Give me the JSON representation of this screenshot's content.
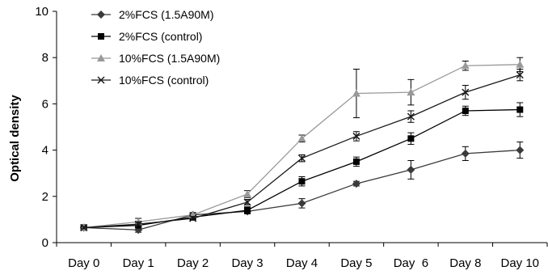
{
  "chart_data": {
    "type": "line",
    "title": "",
    "xlabel": "",
    "ylabel": "Optical density",
    "ylim": [
      0,
      10
    ],
    "yticks": [
      "0",
      "2",
      "4",
      "6",
      "8",
      "10"
    ],
    "categories": [
      "Day 0",
      "Day 1",
      "Day 2",
      "Day 3",
      "Day 4",
      "Day 5",
      "Day  6",
      "Day 8",
      "Day 10"
    ],
    "grid": false,
    "legend_position": "top-left",
    "series": [
      {
        "name": "2%FCS (1.5A90M)",
        "color": "#3a3a3a",
        "marker": "diamond",
        "values": [
          0.65,
          0.55,
          1.2,
          1.35,
          1.7,
          2.55,
          3.15,
          3.85,
          4.0
        ],
        "errors": [
          0.05,
          0.1,
          0.08,
          0.1,
          0.2,
          0.1,
          0.4,
          0.3,
          0.35
        ]
      },
      {
        "name": "2%FCS (control)",
        "color": "#000000",
        "marker": "square",
        "values": [
          0.65,
          0.75,
          1.1,
          1.4,
          2.65,
          3.5,
          4.5,
          5.7,
          5.75
        ],
        "errors": [
          0.05,
          0.1,
          0.08,
          0.15,
          0.2,
          0.2,
          0.25,
          0.2,
          0.3
        ]
      },
      {
        "name": "10%FCS (1.5A90M)",
        "color": "#999999",
        "marker": "triangle",
        "values": [
          0.65,
          0.9,
          1.2,
          2.1,
          4.5,
          6.45,
          6.5,
          7.65,
          7.7
        ],
        "errors": [
          0.05,
          0.15,
          0.1,
          0.15,
          0.15,
          1.05,
          0.55,
          0.2,
          0.3
        ]
      },
      {
        "name": "10%FCS (control)",
        "color": "#1a1a1a",
        "marker": "x",
        "values": [
          0.65,
          0.8,
          1.05,
          1.75,
          3.65,
          4.6,
          5.45,
          6.5,
          7.25
        ],
        "errors": [
          0.05,
          0.1,
          0.08,
          0.12,
          0.15,
          0.2,
          0.25,
          0.3,
          0.25
        ]
      }
    ]
  }
}
